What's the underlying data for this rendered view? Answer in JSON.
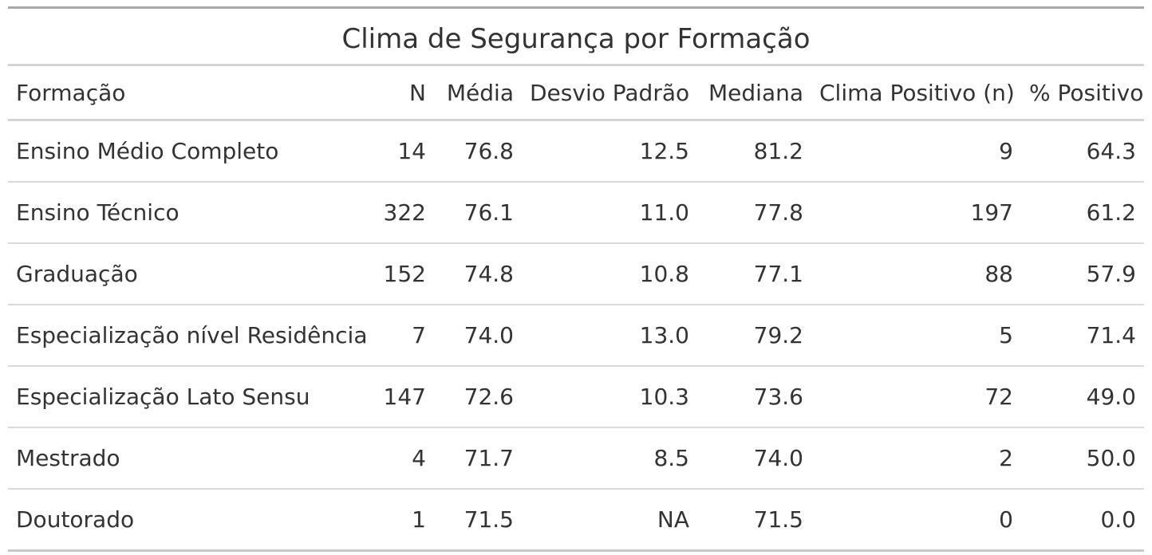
{
  "title": "Clima de Segurança por Formação",
  "headers": {
    "formacao": "Formação",
    "n": "N",
    "media": "Média",
    "desvio": "Desvio Padrão",
    "mediana": "Mediana",
    "clima_positivo_n": "Clima Positivo (n)",
    "pct_positivo": "% Positivo"
  },
  "rows": [
    {
      "formacao": "Ensino Médio Completo",
      "n": "14",
      "media": "76.8",
      "desvio": "12.5",
      "mediana": "81.2",
      "clima_positivo_n": "9",
      "pct_positivo": "64.3"
    },
    {
      "formacao": "Ensino Técnico",
      "n": "322",
      "media": "76.1",
      "desvio": "11.0",
      "mediana": "77.8",
      "clima_positivo_n": "197",
      "pct_positivo": "61.2"
    },
    {
      "formacao": "Graduação",
      "n": "152",
      "media": "74.8",
      "desvio": "10.8",
      "mediana": "77.1",
      "clima_positivo_n": "88",
      "pct_positivo": "57.9"
    },
    {
      "formacao": "Especialização nível Residência",
      "n": "7",
      "media": "74.0",
      "desvio": "13.0",
      "mediana": "79.2",
      "clima_positivo_n": "5",
      "pct_positivo": "71.4"
    },
    {
      "formacao": "Especialização Lato Sensu",
      "n": "147",
      "media": "72.6",
      "desvio": "10.3",
      "mediana": "73.6",
      "clima_positivo_n": "72",
      "pct_positivo": "49.0"
    },
    {
      "formacao": "Mestrado",
      "n": "4",
      "media": "71.7",
      "desvio": "8.5",
      "mediana": "74.0",
      "clima_positivo_n": "2",
      "pct_positivo": "50.0"
    },
    {
      "formacao": "Doutorado",
      "n": "1",
      "media": "71.5",
      "desvio": "NA",
      "mediana": "71.5",
      "clima_positivo_n": "0",
      "pct_positivo": "0.0"
    }
  ]
}
